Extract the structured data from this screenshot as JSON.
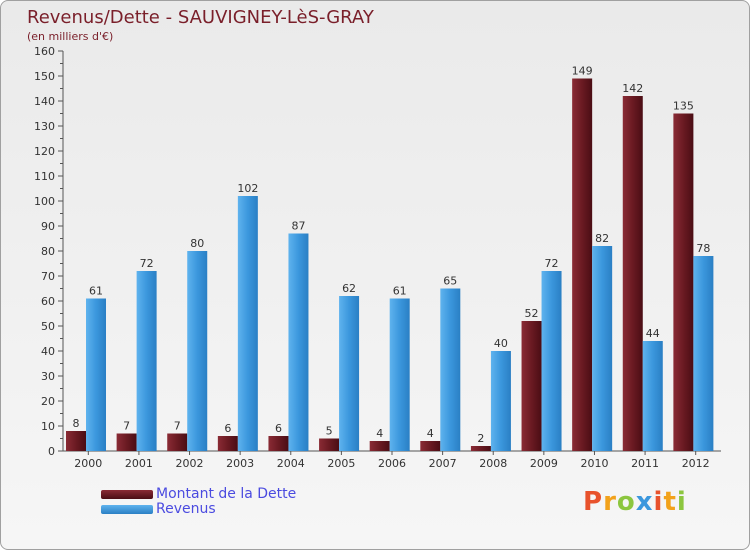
{
  "chart_data": {
    "type": "bar",
    "title": "Revenus/Dette - SAUVIGNEY-LèS-GRAY",
    "subtitle": "(en milliers d'€)",
    "categories": [
      "2000",
      "2001",
      "2002",
      "2003",
      "2004",
      "2005",
      "2006",
      "2007",
      "2008",
      "2009",
      "2010",
      "2011",
      "2012"
    ],
    "series": [
      {
        "name": "Montant de la Dette",
        "values": [
          8,
          7,
          7,
          6,
          6,
          5,
          4,
          4,
          2,
          52,
          149,
          142,
          135
        ],
        "color": "#7a1f2a"
      },
      {
        "name": "Revenus",
        "values": [
          61,
          72,
          80,
          102,
          87,
          62,
          61,
          65,
          40,
          72,
          82,
          44,
          78
        ],
        "color": "#3b97dd"
      }
    ],
    "yticks": [
      0,
      10,
      20,
      30,
      40,
      50,
      60,
      70,
      80,
      90,
      100,
      110,
      120,
      130,
      140,
      150,
      160
    ],
    "ylim": [
      0,
      160
    ],
    "grid": false,
    "legend_position": "bottom-left"
  },
  "branding": {
    "logo_letters": [
      "P",
      "r",
      "o",
      "x",
      "i",
      "t",
      "i"
    ],
    "logo_colors": [
      "#e8522c",
      "#f2a21b",
      "#8cc63f",
      "#3b97dd",
      "#e8522c",
      "#f2a21b",
      "#8cc63f"
    ]
  }
}
